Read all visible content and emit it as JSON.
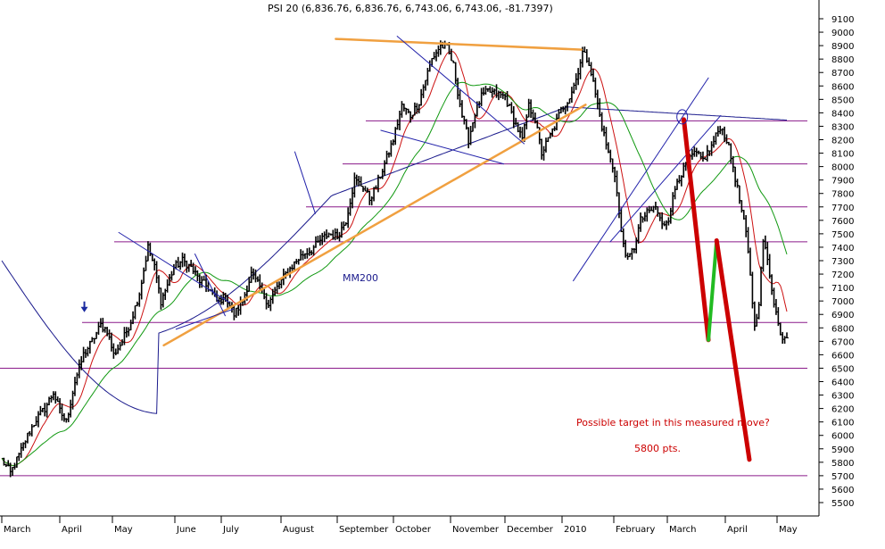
{
  "chart_data": {
    "type": "candlestick",
    "title": "PSI 20 (6,836.76, 6,836.76, 6,743.06, 6,743.06, -81.7397)",
    "y_axis": {
      "ylim": [
        5400,
        9250
      ],
      "ticks": [
        5500,
        5600,
        5700,
        5800,
        5900,
        6000,
        6100,
        6200,
        6300,
        6400,
        6500,
        6600,
        6700,
        6800,
        6900,
        7000,
        7100,
        7200,
        7300,
        7400,
        7500,
        7600,
        7700,
        7800,
        7900,
        8000,
        8100,
        8200,
        8300,
        8400,
        8500,
        8600,
        8700,
        8800,
        8900,
        9000,
        9100
      ],
      "position": "right"
    },
    "x_axis": {
      "month_labels": [
        "March",
        "April",
        "May",
        "June",
        "July",
        "August",
        "September",
        "October",
        "November",
        "December",
        "2010",
        "February",
        "March",
        "April",
        "May"
      ]
    },
    "horizontal_levels": [
      8340,
      8020,
      7700,
      7440,
      6840,
      6500,
      5700
    ],
    "annotations": {
      "ma_label": "MM200",
      "target_question": "Possible target  in this measured move?",
      "target_value": "5800 pts."
    },
    "price_path": [
      [
        0,
        5820
      ],
      [
        4,
        5720
      ],
      [
        8,
        5850
      ],
      [
        12,
        6000
      ],
      [
        16,
        6120
      ],
      [
        20,
        6200
      ],
      [
        24,
        6320
      ],
      [
        27,
        6180
      ],
      [
        30,
        6100
      ],
      [
        34,
        6400
      ],
      [
        38,
        6600
      ],
      [
        42,
        6700
      ],
      [
        46,
        6820
      ],
      [
        49,
        6780
      ],
      [
        52,
        6600
      ],
      [
        56,
        6700
      ],
      [
        60,
        6850
      ],
      [
        64,
        7060
      ],
      [
        68,
        7400
      ],
      [
        71,
        7250
      ],
      [
        74,
        7000
      ],
      [
        77,
        7120
      ],
      [
        80,
        7250
      ],
      [
        84,
        7300
      ],
      [
        88,
        7250
      ],
      [
        92,
        7150
      ],
      [
        96,
        7100
      ],
      [
        100,
        7000
      ],
      [
        104,
        7030
      ],
      [
        108,
        6900
      ],
      [
        112,
        7000
      ],
      [
        116,
        7200
      ],
      [
        120,
        7100
      ],
      [
        124,
        6980
      ],
      [
        128,
        7100
      ],
      [
        132,
        7200
      ],
      [
        136,
        7280
      ],
      [
        140,
        7350
      ],
      [
        144,
        7380
      ],
      [
        148,
        7450
      ],
      [
        152,
        7500
      ],
      [
        156,
        7480
      ],
      [
        160,
        7600
      ],
      [
        164,
        7900
      ],
      [
        168,
        7850
      ],
      [
        171,
        7760
      ],
      [
        174,
        7850
      ],
      [
        178,
        8020
      ],
      [
        182,
        8200
      ],
      [
        186,
        8450
      ],
      [
        190,
        8380
      ],
      [
        194,
        8480
      ],
      [
        197,
        8650
      ],
      [
        200,
        8800
      ],
      [
        204,
        8900
      ],
      [
        207,
        8880
      ],
      [
        210,
        8750
      ],
      [
        212,
        8560
      ],
      [
        214,
        8380
      ],
      [
        217,
        8200
      ],
      [
        220,
        8400
      ],
      [
        223,
        8520
      ],
      [
        226,
        8560
      ],
      [
        230,
        8540
      ],
      [
        234,
        8520
      ],
      [
        238,
        8350
      ],
      [
        242,
        8200
      ],
      [
        245,
        8450
      ],
      [
        248,
        8350
      ],
      [
        251,
        8100
      ],
      [
        254,
        8200
      ],
      [
        257,
        8300
      ],
      [
        260,
        8420
      ],
      [
        264,
        8520
      ],
      [
        267,
        8650
      ],
      [
        270,
        8850
      ],
      [
        273,
        8780
      ],
      [
        276,
        8540
      ],
      [
        279,
        8300
      ],
      [
        282,
        8100
      ],
      [
        285,
        7950
      ],
      [
        288,
        7500
      ],
      [
        291,
        7300
      ],
      [
        294,
        7400
      ],
      [
        297,
        7600
      ],
      [
        300,
        7650
      ],
      [
        304,
        7700
      ],
      [
        307,
        7560
      ],
      [
        310,
        7620
      ],
      [
        314,
        7900
      ],
      [
        318,
        8000
      ],
      [
        322,
        8100
      ],
      [
        326,
        8050
      ],
      [
        330,
        8150
      ],
      [
        334,
        8300
      ],
      [
        337,
        8200
      ],
      [
        340,
        8000
      ],
      [
        343,
        7750
      ],
      [
        346,
        7500
      ],
      [
        348,
        7200
      ],
      [
        350,
        6800
      ],
      [
        352,
        7000
      ],
      [
        354,
        7450
      ],
      [
        356,
        7300
      ],
      [
        359,
        7000
      ],
      [
        362,
        6740
      ]
    ],
    "bar_count": 366,
    "moving_averages": [
      {
        "name": "red short MA",
        "color": "#cc1111",
        "period": 10
      },
      {
        "name": "green medium MA",
        "color": "#119911",
        "period": 30
      },
      {
        "name": "MM200",
        "color": "#1a1a8c",
        "period": 200
      }
    ],
    "trendlines": [
      {
        "color": "#f0a040",
        "points": [
          [
            0.2,
            6670
          ],
          [
            0.715,
            8460
          ]
        ]
      },
      {
        "color": "#f0a040",
        "points": [
          [
            0.41,
            8950
          ],
          [
            0.71,
            8870
          ]
        ]
      },
      {
        "color": "#2222aa",
        "points": [
          [
            0.485,
            8970
          ],
          [
            0.64,
            8170
          ]
        ]
      },
      {
        "color": "#2222aa",
        "points": [
          [
            0.465,
            8270
          ],
          [
            0.615,
            8020
          ]
        ]
      },
      {
        "color": "#2222aa",
        "points": [
          [
            0.145,
            7510
          ],
          [
            0.28,
            6990
          ]
        ]
      },
      {
        "color": "#2222aa",
        "points": [
          [
            0.215,
            6790
          ],
          [
            0.285,
            6940
          ]
        ]
      },
      {
        "color": "#2222aa",
        "points": [
          [
            0.238,
            7350
          ],
          [
            0.275,
            6890
          ]
        ]
      },
      {
        "color": "#2222aa",
        "points": [
          [
            0.36,
            8110
          ],
          [
            0.385,
            7650
          ]
        ]
      },
      {
        "color": "#2222aa",
        "points": [
          [
            0.7,
            7150
          ],
          [
            0.865,
            8660
          ]
        ]
      },
      {
        "color": "#2222aa",
        "points": [
          [
            0.745,
            7440
          ],
          [
            0.88,
            8380
          ]
        ]
      },
      {
        "color": "#cc0000",
        "width": 5,
        "points": [
          [
            0.835,
            8350
          ],
          [
            0.865,
            6710
          ]
        ]
      },
      {
        "color": "#22bb22",
        "width": 4,
        "points": [
          [
            0.865,
            6710
          ],
          [
            0.875,
            7450
          ]
        ]
      },
      {
        "color": "#cc0000",
        "width": 5,
        "points": [
          [
            0.875,
            7450
          ],
          [
            0.915,
            5820
          ]
        ]
      }
    ],
    "markers": [
      {
        "shape": "down-arrow",
        "color": "#1a2aa0",
        "pos": [
          0.103,
          6930
        ]
      },
      {
        "shape": "circle",
        "color": "#2222aa",
        "pos": [
          0.833,
          8370
        ]
      }
    ],
    "colors": {
      "bars": "#000000",
      "level_lines": "#8a1a8a",
      "support_line_blue": "#2222aa",
      "axis": "#000000"
    }
  }
}
